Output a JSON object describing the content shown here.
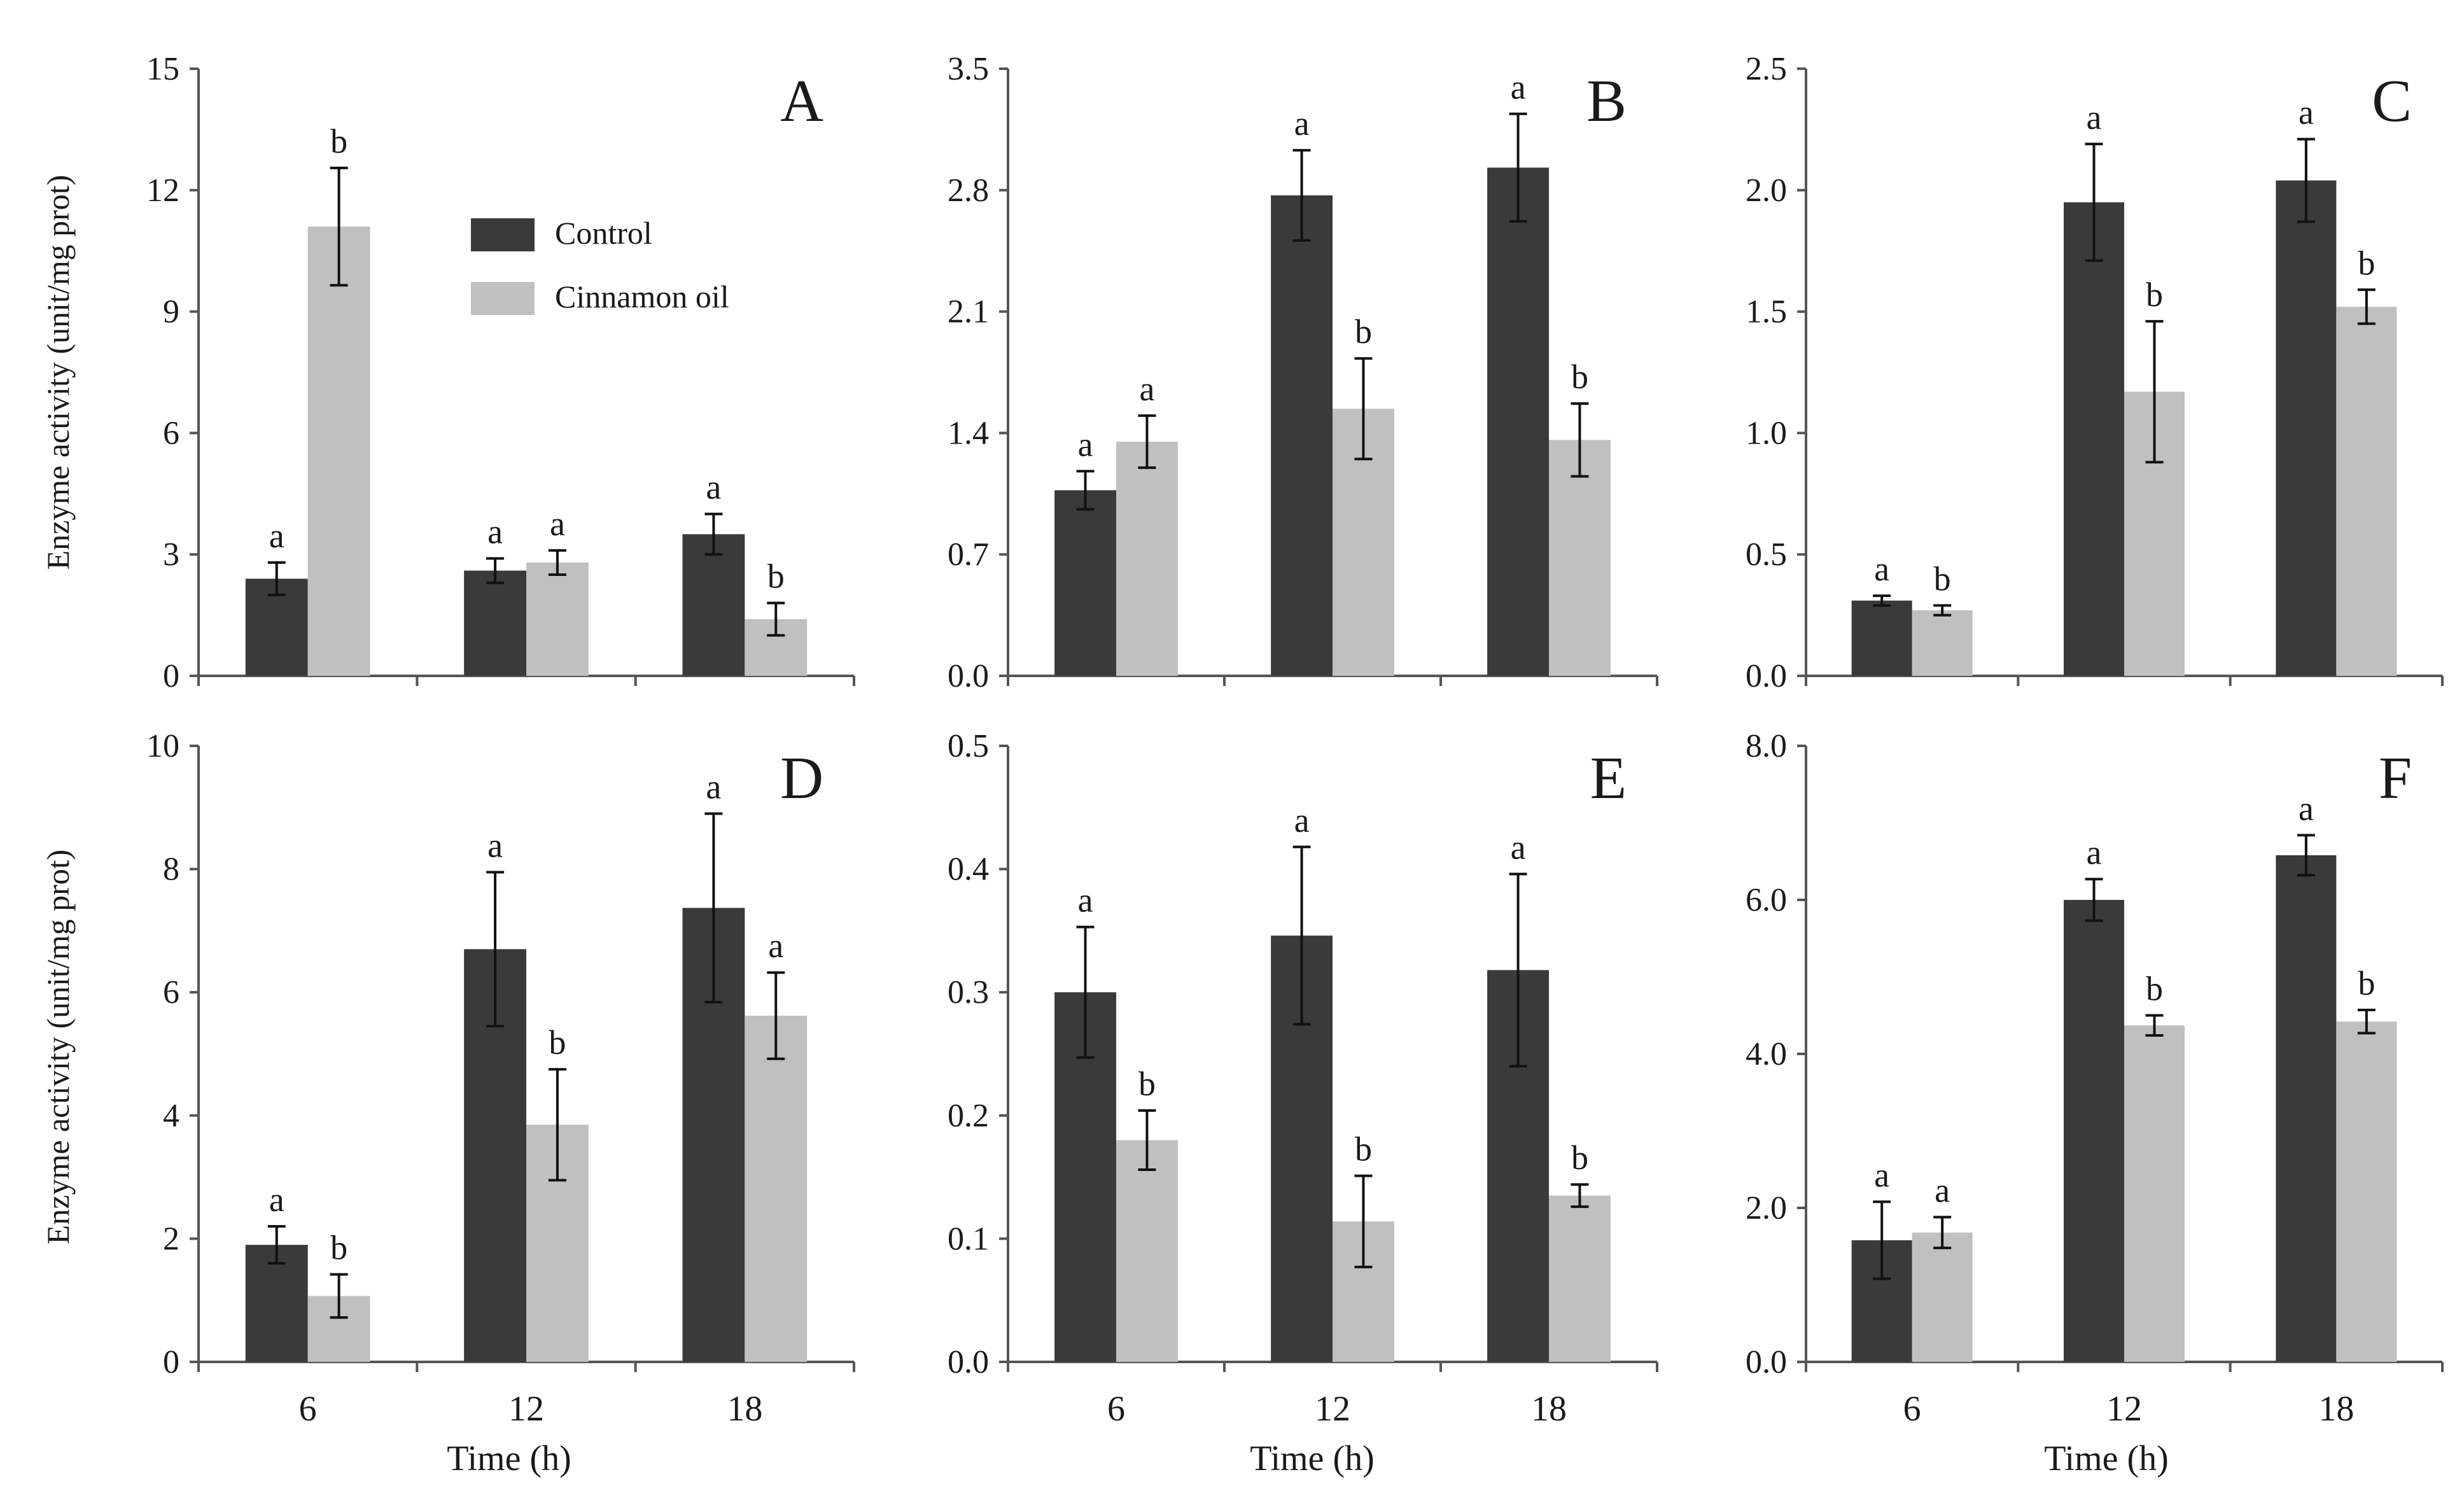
{
  "figure": {
    "y_label": "Enzyme activity (unit/mg prot)",
    "x_label": "Time (h)",
    "legend": {
      "control": "Control",
      "treatment": "Cinnamon oil"
    }
  },
  "colors": {
    "control": "#3a3a3a",
    "treatment": "#c0c0c0",
    "axis": "#555555"
  },
  "chart_data": [
    {
      "type": "bar",
      "panel": "A",
      "title": "A",
      "categories": [
        "6",
        "12",
        "18"
      ],
      "ylim": [
        0,
        15
      ],
      "yticks": [
        "0",
        "3",
        "6",
        "9",
        "12",
        "15"
      ],
      "series": [
        {
          "name": "Control",
          "values": [
            2.4,
            2.6,
            3.5
          ],
          "errors": [
            0.4,
            0.3,
            0.5
          ],
          "labels": [
            "a",
            "a",
            "a"
          ]
        },
        {
          "name": "Cinnamon oil",
          "values": [
            11.1,
            2.8,
            1.4
          ],
          "errors": [
            1.45,
            0.3,
            0.4
          ],
          "labels": [
            "b",
            "a",
            "b"
          ]
        }
      ]
    },
    {
      "type": "bar",
      "panel": "B",
      "title": "B",
      "categories": [
        "6",
        "12",
        "18"
      ],
      "ylim": [
        0,
        3.5
      ],
      "yticks": [
        "0.0",
        "0.7",
        "1.4",
        "2.1",
        "2.8",
        "3.5"
      ],
      "series": [
        {
          "name": "Control",
          "values": [
            1.07,
            2.77,
            2.93
          ],
          "errors": [
            0.11,
            0.26,
            0.31
          ],
          "labels": [
            "a",
            "a",
            "a"
          ]
        },
        {
          "name": "Cinnamon oil",
          "values": [
            1.35,
            1.54,
            1.36
          ],
          "errors": [
            0.15,
            0.29,
            0.21
          ],
          "labels": [
            "a",
            "b",
            "b"
          ]
        }
      ]
    },
    {
      "type": "bar",
      "panel": "C",
      "title": "C",
      "categories": [
        "6",
        "12",
        "18"
      ],
      "ylim": [
        0,
        2.5
      ],
      "yticks": [
        "0.0",
        "0.5",
        "1.0",
        "1.5",
        "2.0",
        "2.5"
      ],
      "series": [
        {
          "name": "Control",
          "values": [
            0.31,
            1.95,
            2.04
          ],
          "errors": [
            0.02,
            0.24,
            0.17
          ],
          "labels": [
            "a",
            "a",
            "a"
          ]
        },
        {
          "name": "Cinnamon oil",
          "values": [
            0.27,
            1.17,
            1.52
          ],
          "errors": [
            0.02,
            0.29,
            0.07
          ],
          "labels": [
            "b",
            "b",
            "b"
          ]
        }
      ]
    },
    {
      "type": "bar",
      "panel": "D",
      "title": "D",
      "categories": [
        "6",
        "12",
        "18"
      ],
      "ylim": [
        0,
        10
      ],
      "yticks": [
        "0",
        "2",
        "4",
        "6",
        "8",
        "10"
      ],
      "series": [
        {
          "name": "Control",
          "values": [
            1.9,
            6.7,
            7.37
          ],
          "errors": [
            0.3,
            1.25,
            1.53
          ],
          "labels": [
            "a",
            "a",
            "a"
          ]
        },
        {
          "name": "Cinnamon oil",
          "values": [
            1.07,
            3.85,
            5.62
          ],
          "errors": [
            0.35,
            0.9,
            0.7
          ],
          "labels": [
            "b",
            "b",
            "a"
          ]
        }
      ]
    },
    {
      "type": "bar",
      "panel": "E",
      "title": "E",
      "categories": [
        "6",
        "12",
        "18"
      ],
      "ylim": [
        0,
        0.5
      ],
      "yticks": [
        "0.0",
        "0.1",
        "0.2",
        "0.3",
        "0.4",
        "0.5"
      ],
      "series": [
        {
          "name": "Control",
          "values": [
            0.3,
            0.346,
            0.318
          ],
          "errors": [
            0.053,
            0.072,
            0.078
          ],
          "labels": [
            "a",
            "a",
            "a"
          ]
        },
        {
          "name": "Cinnamon oil",
          "values": [
            0.18,
            0.114,
            0.135
          ],
          "errors": [
            0.024,
            0.037,
            0.009
          ],
          "labels": [
            "b",
            "b",
            "b"
          ]
        }
      ]
    },
    {
      "type": "bar",
      "panel": "F",
      "title": "F",
      "categories": [
        "6",
        "12",
        "18"
      ],
      "ylim": [
        0,
        8
      ],
      "yticks": [
        "0.0",
        "2.0",
        "4.0",
        "6.0",
        "8.0"
      ],
      "series": [
        {
          "name": "Control",
          "values": [
            1.58,
            6.0,
            6.58
          ],
          "errors": [
            0.5,
            0.27,
            0.26
          ],
          "labels": [
            "a",
            "a",
            "a"
          ]
        },
        {
          "name": "Cinnamon oil",
          "values": [
            1.68,
            4.37,
            4.42
          ],
          "errors": [
            0.2,
            0.13,
            0.15
          ],
          "labels": [
            "a",
            "b",
            "b"
          ]
        }
      ]
    }
  ]
}
